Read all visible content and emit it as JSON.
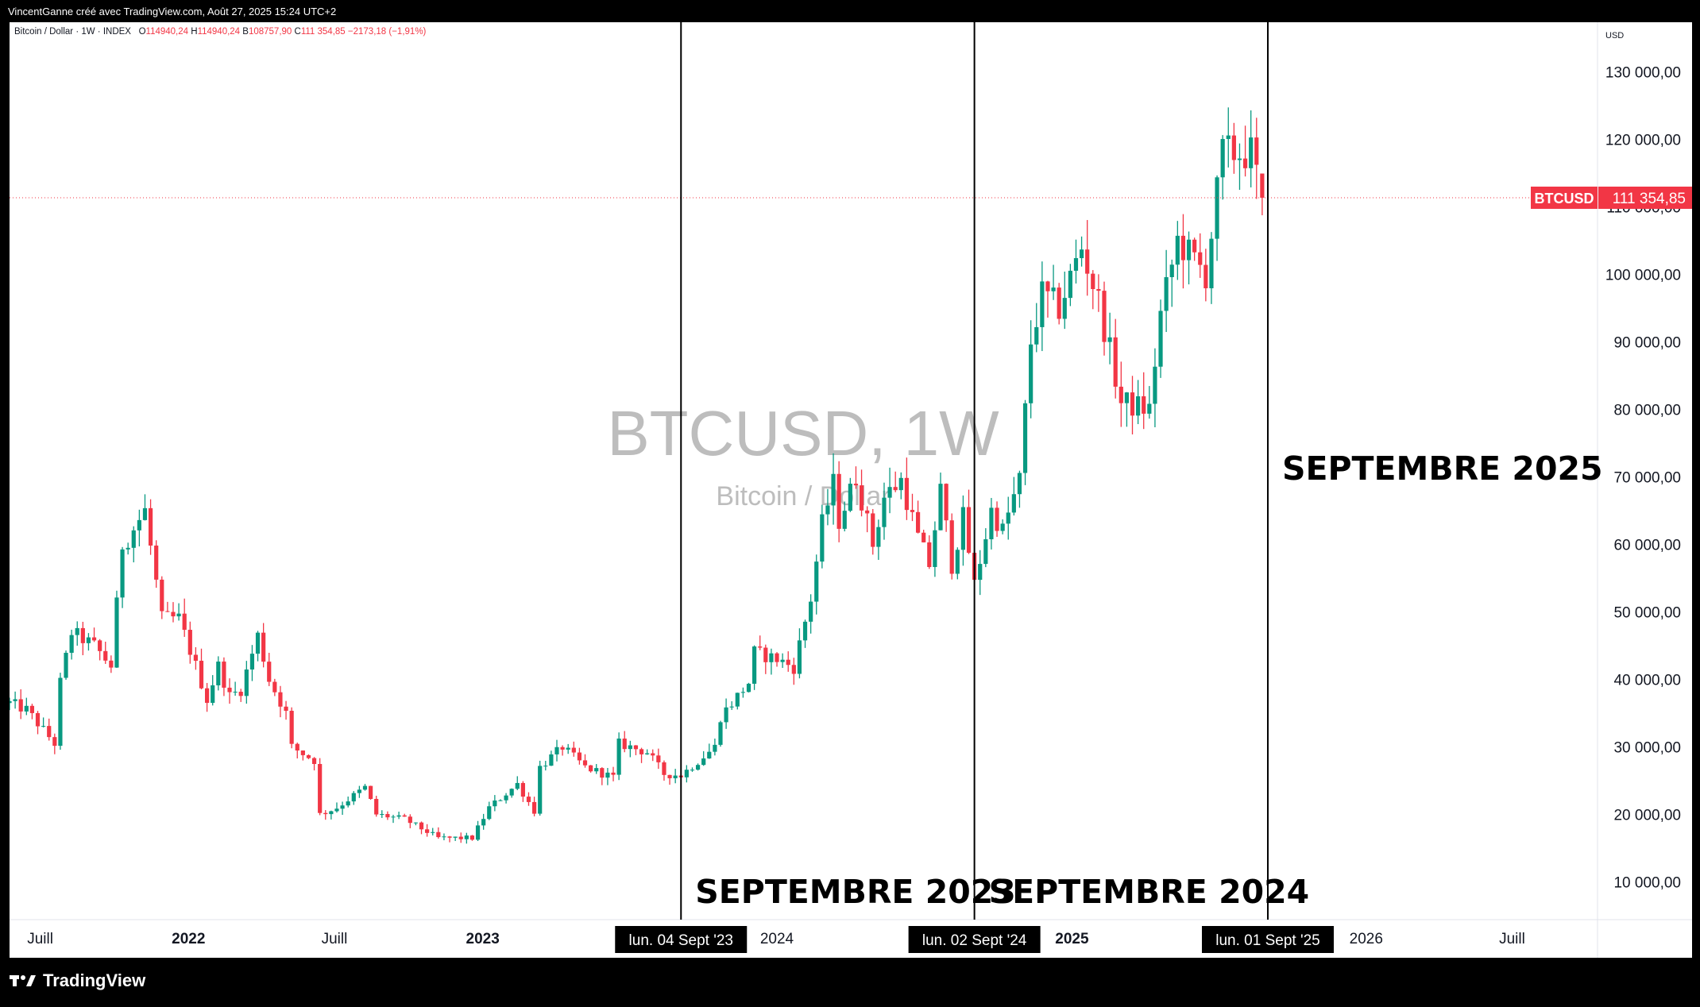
{
  "header": {
    "attribution": "VincentGanne créé avec TradingView.com, Août 27, 2025 15:24 UTC+2"
  },
  "legend": {
    "symbol_desc": "Bitcoin / Dollar · 1W · INDEX",
    "o_label": "O",
    "o_value": "114940,24",
    "h_label": "H",
    "h_value": "114940,24",
    "l_label": "B",
    "l_value": "108757,90",
    "c_label": "C",
    "c_value": "111 354,85",
    "change": "−2173,18 (−1,91%)"
  },
  "watermark": {
    "title": "BTCUSD, 1W",
    "subtitle": "Bitcoin / Dollar"
  },
  "price_scale": {
    "currency": "USD",
    "ticks": [
      "130 000,00",
      "120 000,00",
      "110 000,00",
      "100 000,00",
      "90 000,00",
      "80 000,00",
      "70 000,00",
      "60 000,00",
      "50 000,00",
      "40 000,00",
      "30 000,00",
      "20 000,00",
      "10 000,00"
    ]
  },
  "last_price": {
    "symbol": "BTCUSD",
    "value": "111 354,85",
    "color": "#f23645"
  },
  "time_scale": {
    "labels": [
      "Juill",
      "2022",
      "Juill",
      "2023",
      "2024",
      "2025",
      "2026",
      "Juill"
    ],
    "markers": [
      "lun. 04 Sept '23",
      "lun. 02 Sept '24",
      "lun. 01 Sept '25"
    ]
  },
  "annotations": [
    "SEPTEMBRE 2023",
    "SEPTEMBRE 2024",
    "SEPTEMBRE 2025"
  ],
  "footer": {
    "brand": "TradingView"
  },
  "chart_data": {
    "type": "candlestick",
    "title": "BTCUSD, 1W",
    "interval": "1W",
    "ylabel": "USD",
    "ylim": [
      5000,
      135000
    ],
    "grid": false,
    "up_color": "#089981",
    "down_color": "#f23645",
    "x_range": [
      "2021-05-24",
      "2026-10-15"
    ],
    "x_ticks": [
      {
        "label": "Juill",
        "date": "2021-07-01"
      },
      {
        "label": "2022",
        "date": "2022-01-01"
      },
      {
        "label": "Juill",
        "date": "2022-07-01"
      },
      {
        "label": "2023",
        "date": "2023-01-01"
      },
      {
        "label": "2024",
        "date": "2024-01-01"
      },
      {
        "label": "2025",
        "date": "2025-01-01"
      },
      {
        "label": "2026",
        "date": "2026-01-01"
      },
      {
        "label": "Juill",
        "date": "2026-07-01"
      }
    ],
    "vertical_lines": [
      {
        "date": "2023-09-04",
        "label": "lun. 04 Sept '23",
        "annotation": "SEPTEMBRE 2023"
      },
      {
        "date": "2024-09-02",
        "label": "lun. 02 Sept '24",
        "annotation": "SEPTEMBRE 2024"
      },
      {
        "date": "2025-09-01",
        "label": "lun. 01 Sept '25",
        "annotation": "SEPTEMBRE 2025"
      }
    ],
    "last_price": 111354.85,
    "anchors": [
      [
        "2021-05-24",
        36500
      ],
      [
        "2021-06-14",
        35500
      ],
      [
        "2021-07-19",
        30500
      ],
      [
        "2021-07-26",
        39500
      ],
      [
        "2021-08-09",
        47000
      ],
      [
        "2021-09-06",
        45000
      ],
      [
        "2021-09-27",
        42000
      ],
      [
        "2021-10-11",
        60000
      ],
      [
        "2021-10-18",
        61000
      ],
      [
        "2021-11-08",
        65000
      ],
      [
        "2021-11-29",
        49000
      ],
      [
        "2021-12-20",
        49000
      ],
      [
        "2022-01-10",
        42000
      ],
      [
        "2022-01-24",
        37000
      ],
      [
        "2022-02-07",
        42000
      ],
      [
        "2022-02-21",
        37500
      ],
      [
        "2022-03-07",
        38500
      ],
      [
        "2022-03-28",
        46500
      ],
      [
        "2022-04-11",
        40000
      ],
      [
        "2022-05-02",
        35000
      ],
      [
        "2022-05-09",
        30000
      ],
      [
        "2022-06-06",
        28000
      ],
      [
        "2022-06-13",
        20000
      ],
      [
        "2022-07-04",
        21000
      ],
      [
        "2022-08-08",
        24000
      ],
      [
        "2022-08-22",
        20000
      ],
      [
        "2022-09-26",
        19300
      ],
      [
        "2022-11-07",
        16500
      ],
      [
        "2022-12-19",
        16500
      ],
      [
        "2023-01-09",
        21000
      ],
      [
        "2023-02-13",
        24500
      ],
      [
        "2023-03-06",
        20500
      ],
      [
        "2023-03-13",
        27000
      ],
      [
        "2023-04-10",
        30000
      ],
      [
        "2023-05-08",
        27000
      ],
      [
        "2023-06-12",
        25500
      ],
      [
        "2023-06-19",
        30500
      ],
      [
        "2023-07-24",
        29200
      ],
      [
        "2023-08-14",
        26000
      ],
      [
        "2023-09-04",
        25800
      ],
      [
        "2023-10-16",
        30000
      ],
      [
        "2023-10-23",
        34500
      ],
      [
        "2023-11-27",
        39500
      ],
      [
        "2023-12-04",
        44000
      ],
      [
        "2024-01-01",
        43000
      ],
      [
        "2024-01-22",
        41800
      ],
      [
        "2024-02-12",
        52000
      ],
      [
        "2024-02-26",
        63000
      ],
      [
        "2024-03-11",
        69000
      ],
      [
        "2024-03-18",
        63500
      ],
      [
        "2024-04-08",
        70000
      ],
      [
        "2024-04-29",
        60000
      ],
      [
        "2024-05-13",
        67000
      ],
      [
        "2024-06-03",
        69500
      ],
      [
        "2024-06-24",
        61000
      ],
      [
        "2024-07-08",
        57000
      ],
      [
        "2024-07-22",
        68000
      ],
      [
        "2024-08-05",
        57000
      ],
      [
        "2024-08-19",
        64000
      ],
      [
        "2024-09-02",
        54000
      ],
      [
        "2024-09-23",
        65000
      ],
      [
        "2024-10-07",
        62000
      ],
      [
        "2024-10-28",
        69500
      ],
      [
        "2024-11-11",
        90000
      ],
      [
        "2024-11-25",
        97000
      ],
      [
        "2024-12-16",
        95000
      ],
      [
        "2025-01-13",
        104000
      ],
      [
        "2025-02-03",
        96000
      ],
      [
        "2025-03-03",
        81000
      ],
      [
        "2025-04-07",
        80000
      ],
      [
        "2025-04-21",
        94000
      ],
      [
        "2025-05-12",
        105000
      ],
      [
        "2025-06-16",
        100000
      ],
      [
        "2025-07-07",
        118000
      ],
      [
        "2025-08-11",
        118000
      ],
      [
        "2025-08-25",
        111354
      ]
    ]
  }
}
